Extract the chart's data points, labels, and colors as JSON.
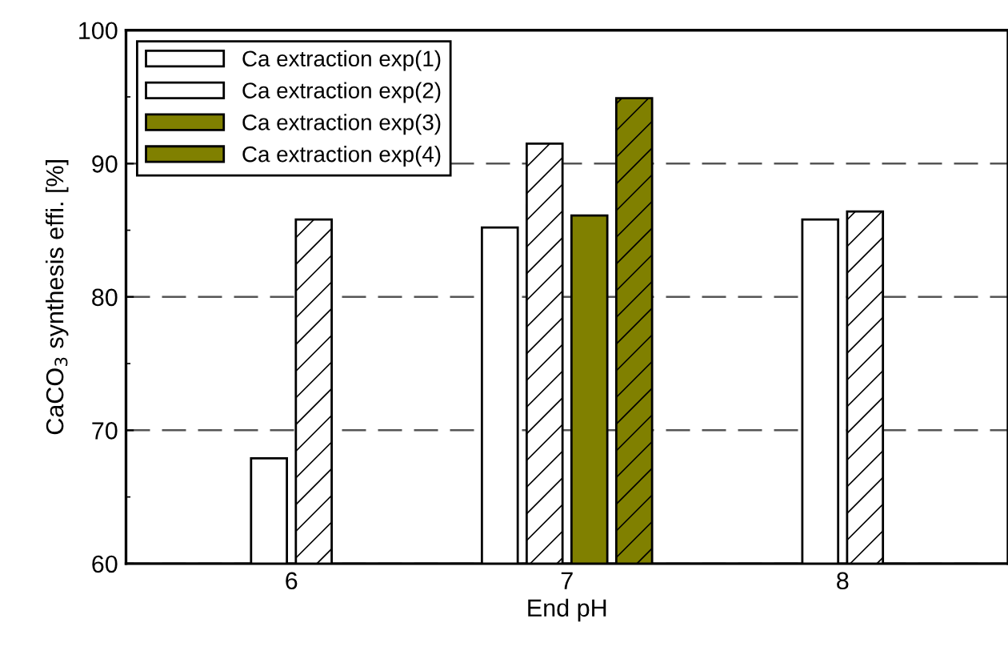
{
  "chart_data": {
    "type": "bar",
    "xlabel": "End pH",
    "ylabel": "CaCO$_{3}$ synthesis effi. [%]",
    "categories": [
      "6",
      "7",
      "8"
    ],
    "series": [
      {
        "name": "Ca extraction exp(1)",
        "color": "#ffffff",
        "values": [
          67.9,
          85.2,
          85.8
        ]
      },
      {
        "name": "Ca extraction exp(2)",
        "color": "#ffffff",
        "values": [
          85.8,
          91.5,
          86.4
        ]
      },
      {
        "name": "Ca extraction exp(3)",
        "color": "#808000",
        "values": [
          null,
          86.1,
          null
        ]
      },
      {
        "name": "Ca extraction exp(4)",
        "color": "#808000",
        "values": [
          null,
          94.9,
          null
        ]
      }
    ],
    "ylim": [
      60,
      100
    ],
    "yticks": [
      60,
      {
        "value": 65,
        "label": null
      },
      70,
      {
        "value": 75,
        "label": null
      },
      80,
      {
        "value": 85,
        "label": null
      },
      90,
      {
        "value": 95,
        "label": null
      },
      100
    ],
    "grid": "y",
    "legend": "top left"
  }
}
